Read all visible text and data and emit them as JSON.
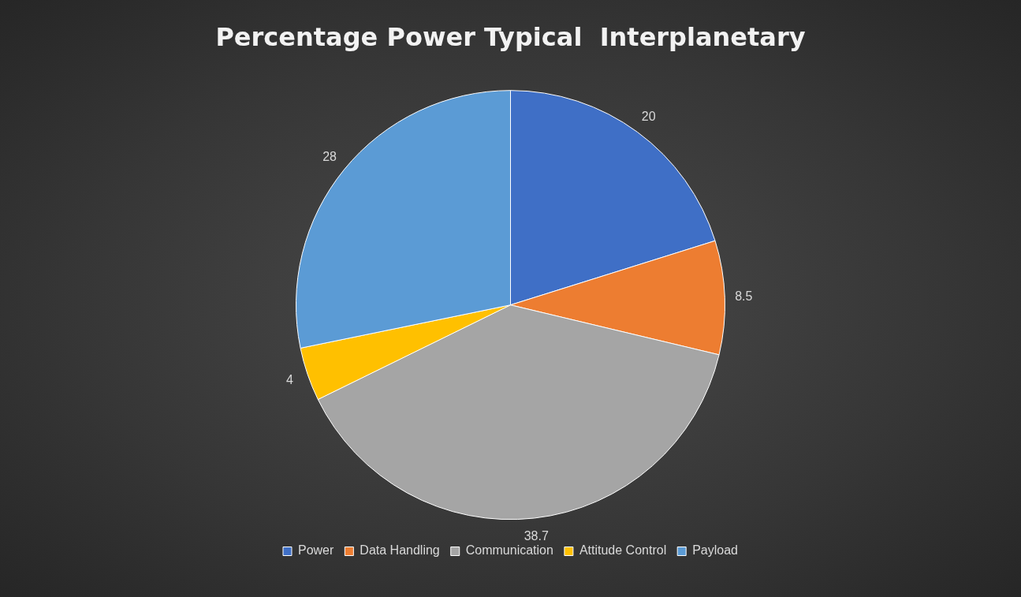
{
  "chart_data": {
    "type": "pie",
    "title": "Percentage Power Typical  Interplanetary",
    "categories": [
      "Power",
      "Data Handling",
      "Communication",
      "Attitude Control",
      "Payload"
    ],
    "values": [
      20,
      8.5,
      38.7,
      4,
      28
    ],
    "colors": [
      "#3f6fc6",
      "#ed7d31",
      "#a5a5a5",
      "#ffc000",
      "#5b9bd5"
    ],
    "data_labels": true,
    "legend": "bottom"
  }
}
